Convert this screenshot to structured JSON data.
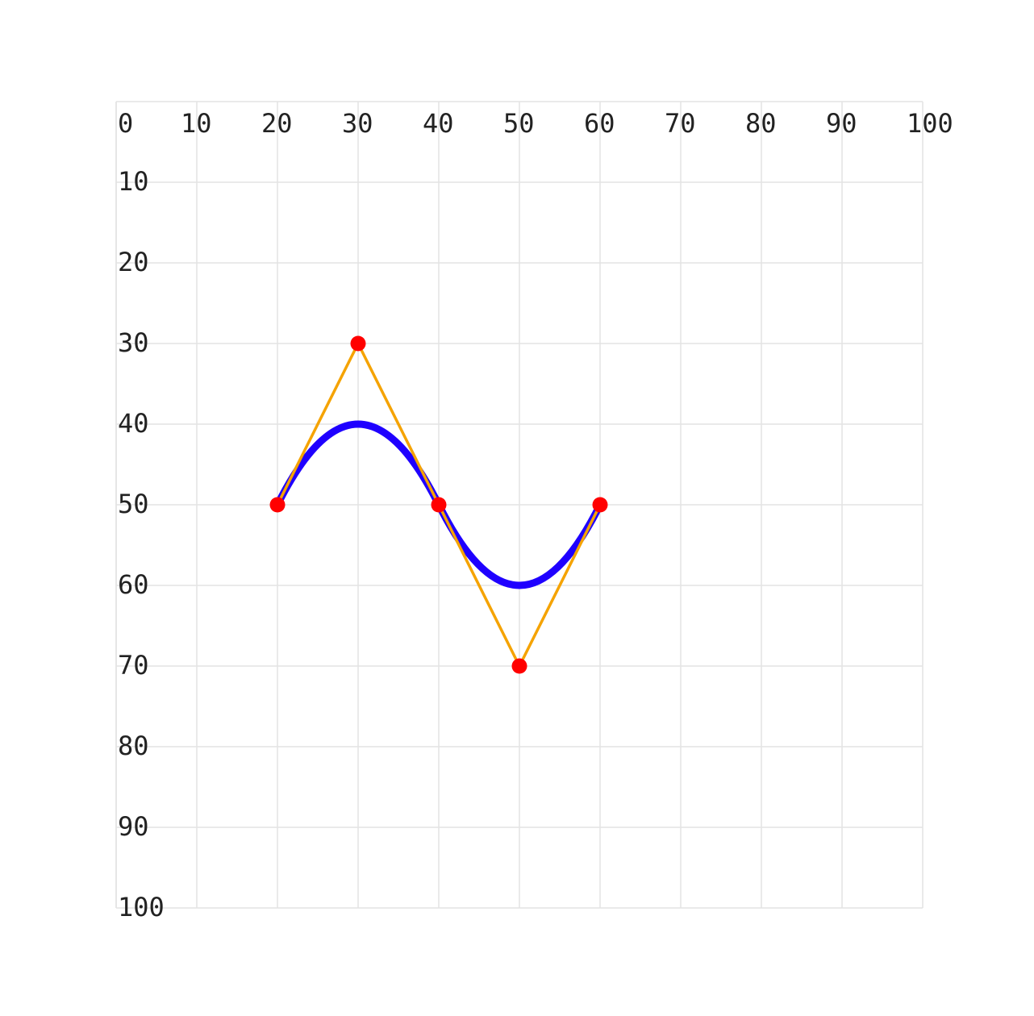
{
  "chart_data": {
    "type": "bezier",
    "x": [
      20,
      30,
      40,
      50,
      60
    ],
    "values": [
      50,
      30,
      50,
      70,
      50
    ],
    "line_color": "#f5a300",
    "curve_color": "#1f00ff",
    "point_color": "#ff0000",
    "xlim": [
      0,
      100
    ],
    "ylim": [
      0,
      100
    ],
    "xticks": [
      0,
      10,
      20,
      30,
      40,
      50,
      60,
      70,
      80,
      90,
      100
    ],
    "yticks": [
      10,
      20,
      30,
      40,
      50,
      60,
      70,
      80,
      90,
      100
    ],
    "y_inverted": true,
    "grid": true
  }
}
